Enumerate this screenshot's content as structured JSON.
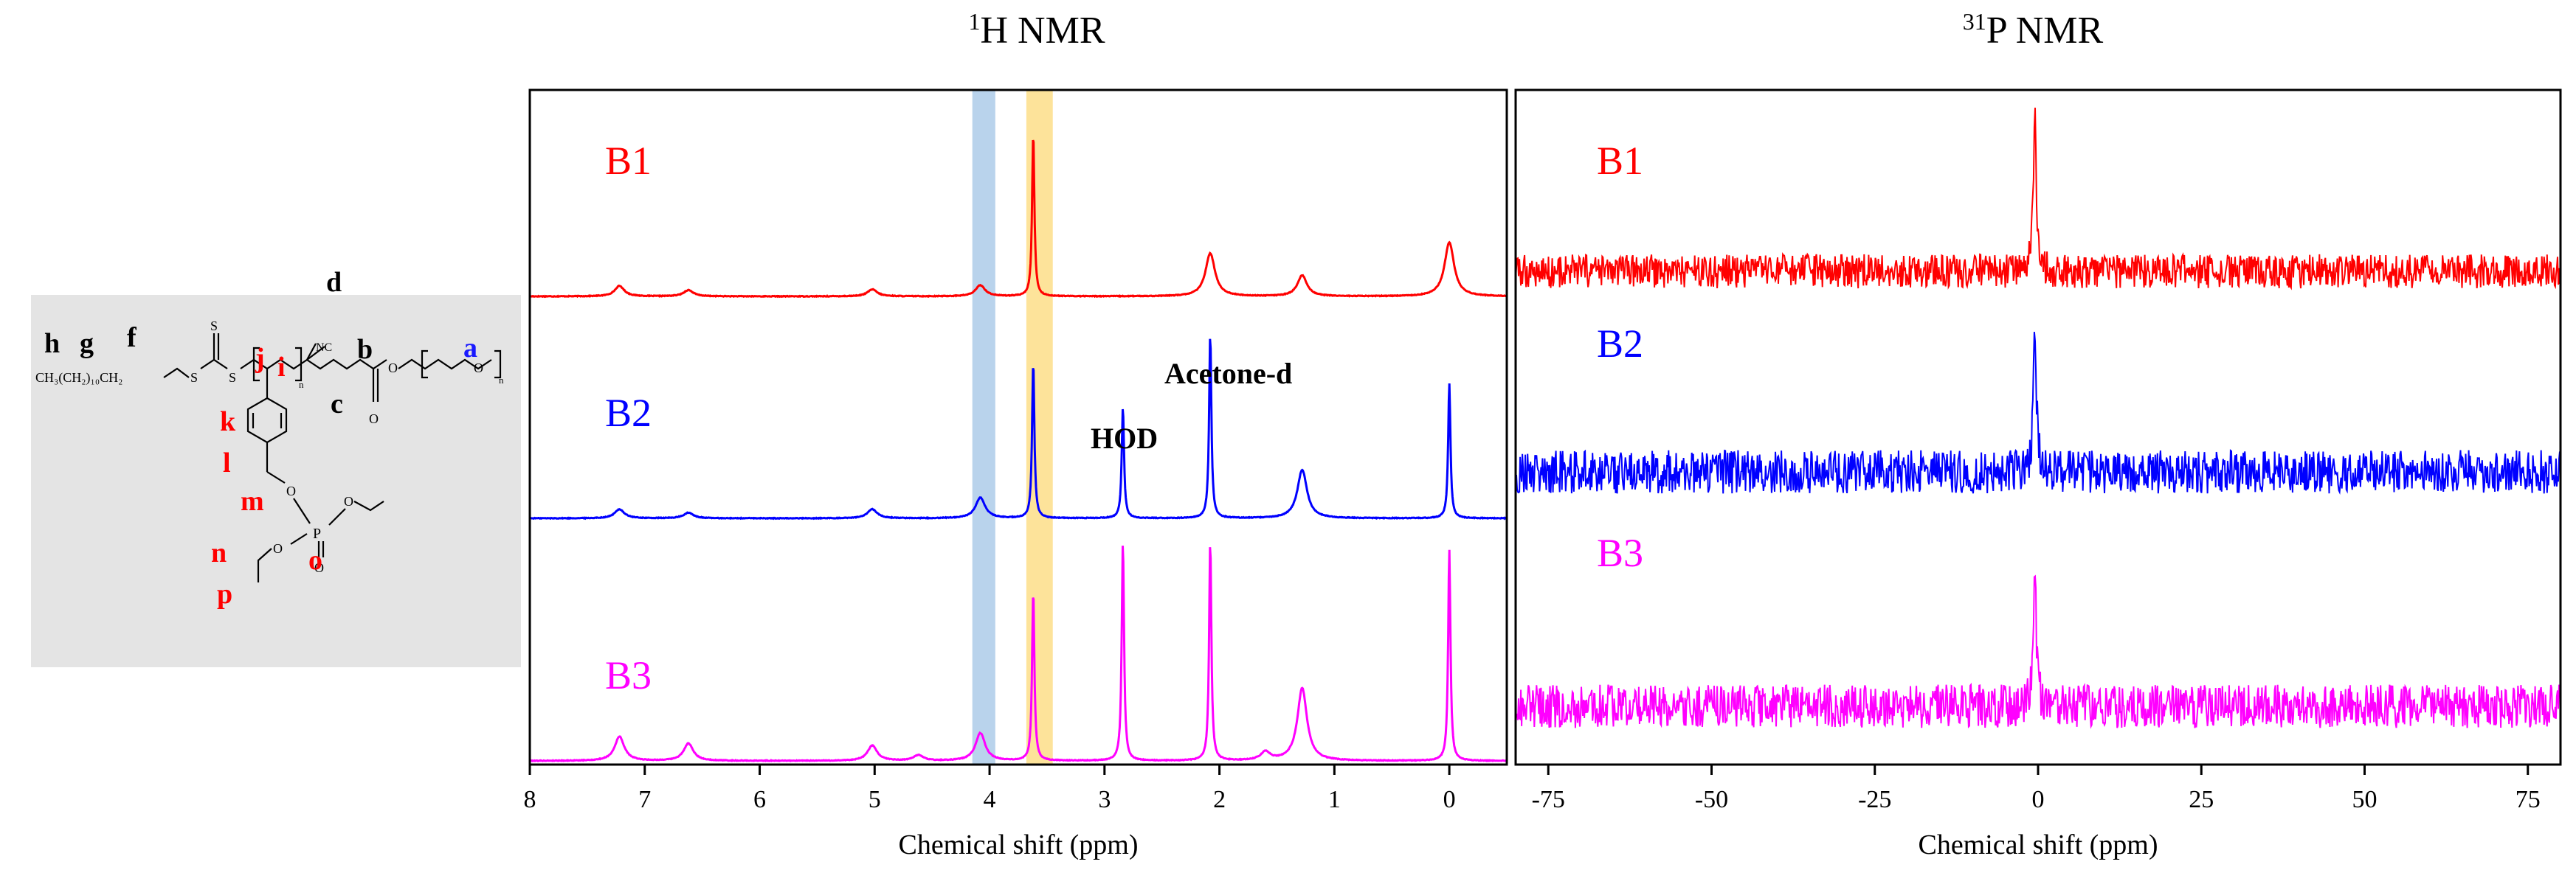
{
  "colors": {
    "b1": "#ff0000",
    "b2": "#0000ff",
    "b3": "#ff00ff",
    "band_blue": "#b9d3ec",
    "band_yellow": "#fde39a",
    "molecule_bg": "#e4e4e4",
    "label_blue": "#1a1aff"
  },
  "molecule": {
    "description_labels": [
      "h",
      "g",
      "f",
      "d",
      "b",
      "a",
      "j",
      "i",
      "c",
      "k",
      "l",
      "m",
      "n",
      "o",
      "p"
    ],
    "formula_left": "CH₃(CH₂)₁₀CH₂",
    "atom_S": "S",
    "atom_O": "O",
    "atom_P": "P",
    "nc": "NC",
    "sub_n": "n",
    "sub_m": "m",
    "labels": {
      "h": "h",
      "g": "g",
      "f": "f",
      "d": "d",
      "b": "b",
      "a": "a",
      "j": "j",
      "i": "i",
      "c": "c",
      "k": "k",
      "l": "l",
      "m": "m",
      "n": "n",
      "o": "o",
      "p": "p"
    }
  },
  "chart_data": [
    {
      "type": "line",
      "title": "1H NMR",
      "title_base": "H NMR",
      "title_sup": "1",
      "xlabel": "Chemical shift (ppm)",
      "xlim": [
        8,
        -0.5
      ],
      "x_reversed": true,
      "xticks": [
        8,
        7,
        6,
        5,
        4,
        3,
        2,
        1,
        0
      ],
      "tick_labels": [
        "8",
        "7",
        "6",
        "5",
        "4",
        "3",
        "2",
        "1",
        "0"
      ],
      "highlight_bands": [
        {
          "from": 4.15,
          "to": 3.95,
          "color": "#b9d3ec"
        },
        {
          "from": 3.68,
          "to": 3.45,
          "color": "#fde39a"
        }
      ],
      "annotations": [
        {
          "text": "Acetone-d",
          "x": 2.08
        },
        {
          "text": "HOD",
          "x": 2.84
        }
      ],
      "series": [
        {
          "name": "B1",
          "color": "#ff0000",
          "peaks": [
            [
              7.22,
              0.15
            ],
            [
              6.62,
              0.09
            ],
            [
              5.02,
              0.1
            ],
            [
              4.08,
              0.16
            ],
            [
              3.62,
              2.35
            ],
            [
              2.08,
              0.62
            ],
            [
              1.28,
              0.3
            ],
            [
              0.0,
              0.78
            ]
          ]
        },
        {
          "name": "B2",
          "color": "#0000ff",
          "peaks": [
            [
              7.22,
              0.13
            ],
            [
              6.62,
              0.08
            ],
            [
              5.02,
              0.13
            ],
            [
              4.08,
              0.3
            ],
            [
              3.62,
              2.25
            ],
            [
              2.84,
              1.6
            ],
            [
              2.08,
              2.65
            ],
            [
              1.28,
              0.7
            ],
            [
              0.0,
              1.95
            ]
          ]
        },
        {
          "name": "B3",
          "color": "#ff00ff",
          "peaks": [
            [
              7.22,
              0.35
            ],
            [
              6.62,
              0.25
            ],
            [
              5.02,
              0.22
            ],
            [
              4.62,
              0.08
            ],
            [
              4.08,
              0.4
            ],
            [
              3.62,
              2.45
            ],
            [
              2.84,
              3.15
            ],
            [
              2.08,
              3.15
            ],
            [
              1.6,
              0.12
            ],
            [
              1.28,
              1.05
            ],
            [
              0.0,
              3.05
            ]
          ]
        }
      ]
    },
    {
      "type": "line",
      "title": "31P NMR",
      "title_base": "P NMR",
      "title_sup": "31",
      "xlabel": "Chemical shift (ppm)",
      "xlim": [
        -80,
        80
      ],
      "x_reversed": false,
      "xticks": [
        -75,
        -50,
        -25,
        0,
        25,
        50,
        75
      ],
      "tick_labels": [
        "-75",
        "-50",
        "-25",
        "0",
        "25",
        "50",
        "75"
      ],
      "series": [
        {
          "name": "B1",
          "color": "#ff0000",
          "peaks": [
            [
              -0.5,
              1.0
            ]
          ],
          "noise_level": 0.11
        },
        {
          "name": "B2",
          "color": "#0000ff",
          "peaks": [
            [
              -0.5,
              0.95
            ]
          ],
          "noise_level": 0.14
        },
        {
          "name": "B3",
          "color": "#ff00ff",
          "peaks": [
            [
              -0.5,
              0.85
            ]
          ],
          "noise_level": 0.14
        }
      ]
    }
  ]
}
